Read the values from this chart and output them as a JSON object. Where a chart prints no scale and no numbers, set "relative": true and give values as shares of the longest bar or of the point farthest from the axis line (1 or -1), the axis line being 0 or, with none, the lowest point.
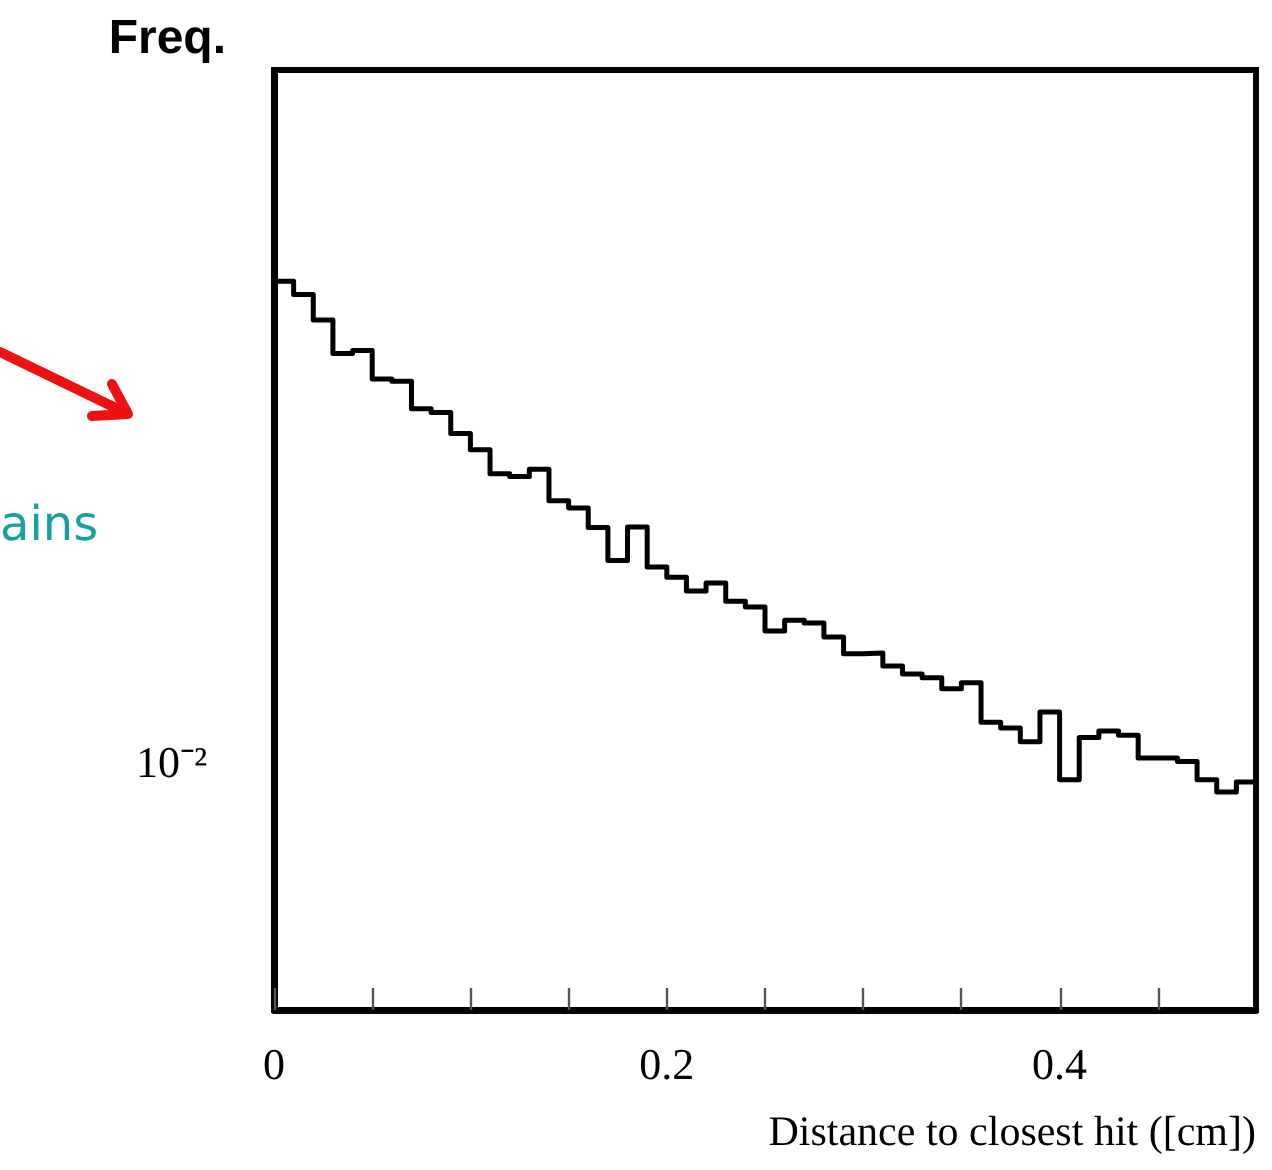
{
  "chart_data": {
    "type": "step",
    "ylabel": "Freq.",
    "xlabel": "Distance to closest hit ([cm])",
    "relative": true,
    "grid": false,
    "color": "#000000",
    "x": [
      0,
      0.01,
      0.02,
      0.03,
      0.04,
      0.05,
      0.06,
      0.07,
      0.08,
      0.09,
      0.1,
      0.11,
      0.12,
      0.13,
      0.14,
      0.15,
      0.16,
      0.17,
      0.18,
      0.19,
      0.2,
      0.21,
      0.22,
      0.23,
      0.24,
      0.25,
      0.26,
      0.27,
      0.28,
      0.29,
      0.3,
      0.31,
      0.32,
      0.33,
      0.34,
      0.35,
      0.36,
      0.37,
      0.38,
      0.39,
      0.4,
      0.41,
      0.42,
      0.43,
      0.44,
      0.45,
      0.46,
      0.47,
      0.48,
      0.49,
      0.5
    ],
    "values": [
      1,
      0.982,
      0.947,
      0.901,
      0.905,
      0.866,
      0.863,
      0.825,
      0.82,
      0.791,
      0.769,
      0.736,
      0.732,
      0.742,
      0.699,
      0.689,
      0.662,
      0.617,
      0.663,
      0.608,
      0.594,
      0.575,
      0.586,
      0.561,
      0.553,
      0.52,
      0.535,
      0.531,
      0.512,
      0.489,
      0.49,
      0.472,
      0.461,
      0.456,
      0.441,
      0.449,
      0.395,
      0.387,
      0.368,
      0.409,
      0.316,
      0.374,
      0.383,
      0.377,
      0.346,
      0.346,
      0.341,
      0.316,
      0.299,
      0.313,
      0.313
    ],
    "xlim": [
      0,
      0.5
    ],
    "xticks": [
      0,
      0.2,
      0.4
    ],
    "annotations": [
      "ains",
      "10⁻²"
    ]
  }
}
